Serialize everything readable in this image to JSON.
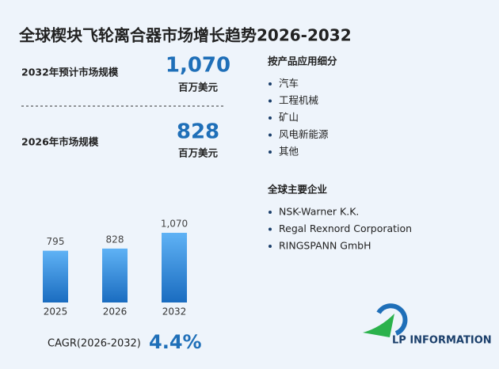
{
  "title": "全球楔块飞轮离合器市场增长趋势2026-2032",
  "market": [
    {
      "label": "2032年预计市场规模",
      "value": "1,070",
      "unit": "百万美元"
    },
    {
      "label": "2026年市场规模",
      "value": "828",
      "unit": "百万美元"
    }
  ],
  "chart_data": {
    "type": "bar",
    "categories": [
      "2025",
      "2026",
      "2032"
    ],
    "values": [
      795,
      828,
      1070
    ],
    "value_labels": [
      "795",
      "828",
      "1,070"
    ],
    "color": "#2a86d8"
  },
  "cagr": {
    "label": "CAGR(2026-2032)",
    "value": "4.4%"
  },
  "segments": {
    "title": "按产品应用细分",
    "items": [
      "汽车",
      "工程机械",
      "矿山",
      "风电新能源",
      "其他"
    ]
  },
  "companies": {
    "title": "全球主要企业",
    "items": [
      "NSK-Warner K.K.",
      "Regal Rexnord Corporation",
      "RINGSPANN GmbH"
    ]
  },
  "logo": "LP INFORMATION"
}
